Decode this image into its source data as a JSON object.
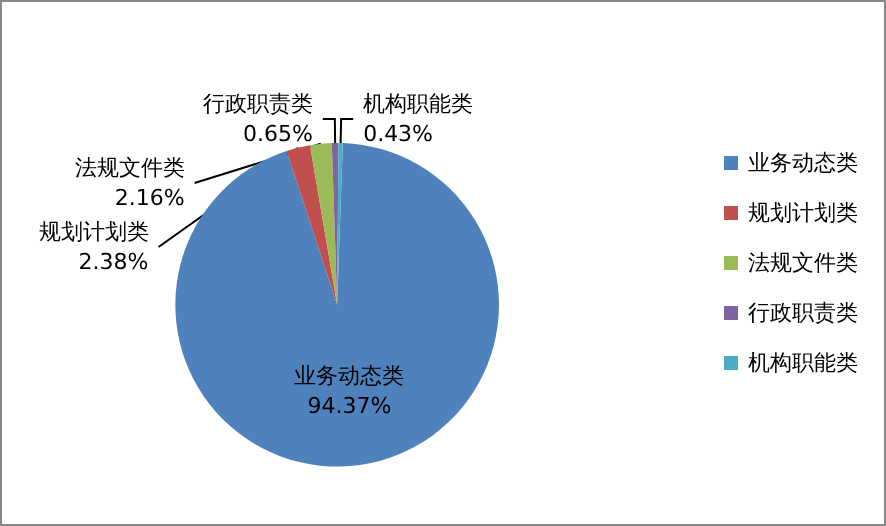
{
  "chart_data": {
    "type": "pie",
    "categories": [
      "业务动态类",
      "规划计划类",
      "法规文件类",
      "行政职责类",
      "机构职能类"
    ],
    "values": [
      94.37,
      2.38,
      2.16,
      0.65,
      0.43
    ],
    "value_labels": [
      "94.37%",
      "2.38%",
      "2.16%",
      "0.65%",
      "0.43%"
    ],
    "colors": [
      "#4f81bd",
      "#c0504d",
      "#9bbb59",
      "#8064a2",
      "#4bacc6"
    ],
    "legend": "right"
  }
}
